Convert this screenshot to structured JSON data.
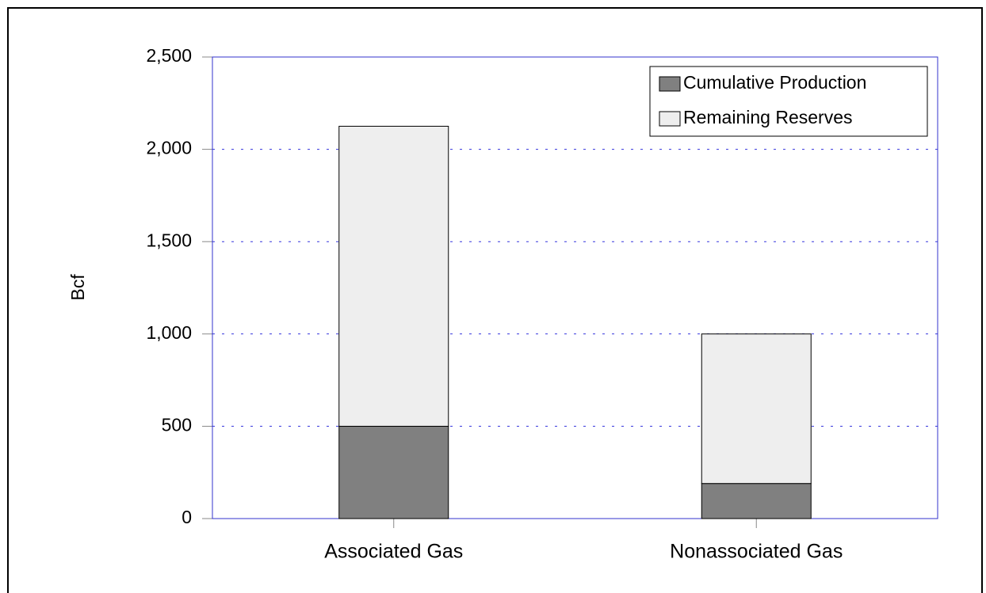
{
  "chart_data": {
    "type": "stacked-bar",
    "y_label": "Bcf",
    "categories": [
      "Associated Gas",
      "Nonassociated Gas"
    ],
    "series": [
      {
        "name": "Cumulative Production",
        "color": "#808080",
        "values": [
          500,
          190
        ]
      },
      {
        "name": "Remaining Reserves",
        "color": "#eeeeee",
        "values": [
          1625,
          810
        ]
      }
    ],
    "ylim": [
      0,
      2500
    ],
    "yticks": [
      0,
      500,
      {
        "value": 1000,
        "label": "1,000"
      },
      {
        "value": 1500,
        "label": "1,500"
      },
      {
        "value": 2000,
        "label": "2,000"
      },
      {
        "value": 2500,
        "label": "2,500"
      }
    ],
    "grid": true,
    "legend": "top-right"
  }
}
